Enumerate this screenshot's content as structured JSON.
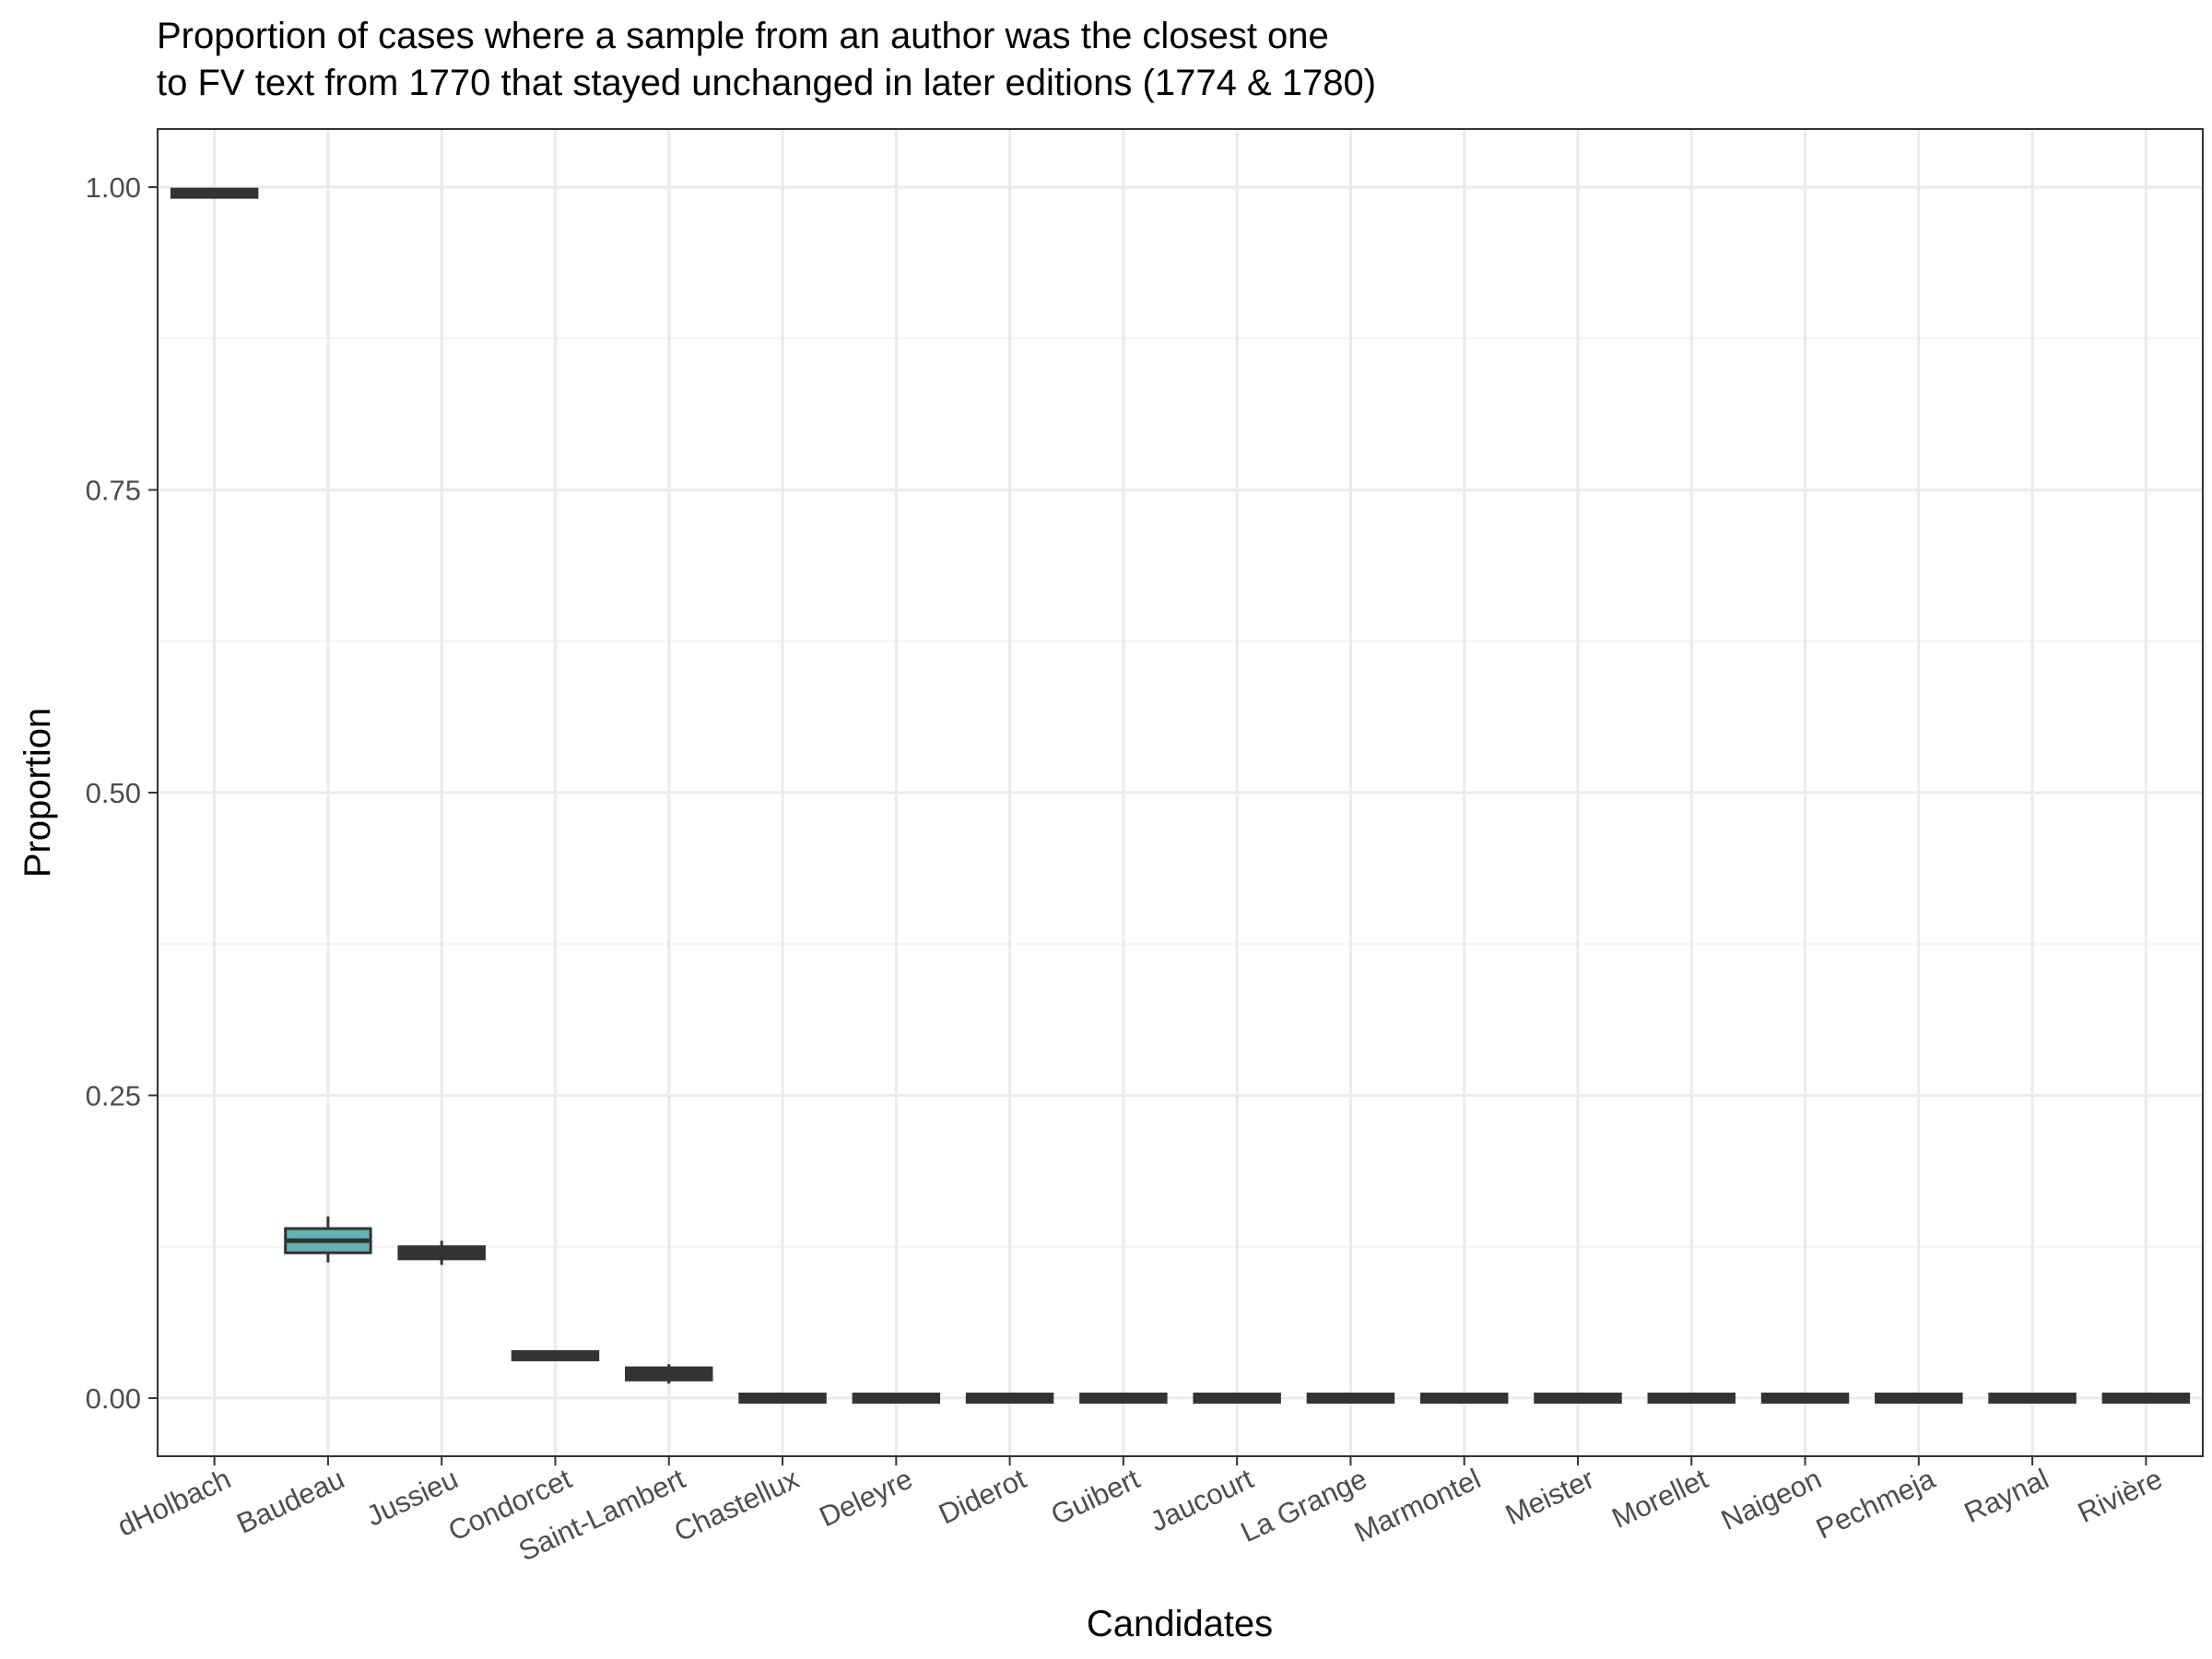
{
  "chart_data": {
    "type": "boxplot",
    "title": [
      "Proportion of cases where a sample from an author was the closest one",
      "to FV text from 1770 that stayed unchanged in later editions (1774 & 1780)"
    ],
    "xlabel": "Candidates",
    "ylabel": "Proportion",
    "ylim": [
      -0.048,
      1.048
    ],
    "yticks": [
      0,
      0.25,
      0.5,
      0.75,
      1
    ],
    "ytick_labels": [
      "0.00",
      "0.25",
      "0.50",
      "0.75",
      "1.00"
    ],
    "grid": true,
    "theme": "bw",
    "categories": [
      "dHolbach",
      "Baudeau",
      "Jussieu",
      "Condorcet",
      "Saint-Lambert",
      "Chastellux",
      "Deleyre",
      "Diderot",
      "Guibert",
      "Jaucourt",
      "La Grange",
      "Marmontel",
      "Meister",
      "Morellet",
      "Naigeon",
      "Pechmeja",
      "Raynal",
      "Rivière"
    ],
    "boxes": [
      {
        "min": 0.992,
        "q1": 0.993,
        "median": 0.995,
        "q3": 0.997,
        "max": 0.998,
        "fill": "#333333"
      },
      {
        "min": 0.112,
        "q1": 0.12,
        "median": 0.13,
        "q3": 0.14,
        "max": 0.15,
        "fill": "#66b2b2"
      },
      {
        "min": 0.11,
        "q1": 0.115,
        "median": 0.12,
        "q3": 0.125,
        "max": 0.13,
        "fill": "#333333"
      },
      {
        "min": 0.032,
        "q1": 0.033,
        "median": 0.035,
        "q3": 0.037,
        "max": 0.039,
        "fill": "#333333"
      },
      {
        "min": 0.012,
        "q1": 0.015,
        "median": 0.02,
        "q3": 0.025,
        "max": 0.028,
        "fill": "#333333"
      },
      {
        "min": 0,
        "q1": 0,
        "median": 0,
        "q3": 0,
        "max": 0,
        "fill": "#333333"
      },
      {
        "min": 0,
        "q1": 0,
        "median": 0,
        "q3": 0,
        "max": 0,
        "fill": "#333333"
      },
      {
        "min": 0,
        "q1": 0,
        "median": 0,
        "q3": 0,
        "max": 0,
        "fill": "#333333"
      },
      {
        "min": 0,
        "q1": 0,
        "median": 0,
        "q3": 0,
        "max": 0,
        "fill": "#333333"
      },
      {
        "min": 0,
        "q1": 0,
        "median": 0,
        "q3": 0,
        "max": 0,
        "fill": "#333333"
      },
      {
        "min": 0,
        "q1": 0,
        "median": 0,
        "q3": 0,
        "max": 0,
        "fill": "#333333"
      },
      {
        "min": 0,
        "q1": 0,
        "median": 0,
        "q3": 0,
        "max": 0,
        "fill": "#333333"
      },
      {
        "min": 0,
        "q1": 0,
        "median": 0,
        "q3": 0,
        "max": 0,
        "fill": "#333333"
      },
      {
        "min": 0,
        "q1": 0,
        "median": 0,
        "q3": 0,
        "max": 0,
        "fill": "#333333"
      },
      {
        "min": 0,
        "q1": 0,
        "median": 0,
        "q3": 0,
        "max": 0,
        "fill": "#333333"
      },
      {
        "min": 0,
        "q1": 0,
        "median": 0,
        "q3": 0,
        "max": 0,
        "fill": "#333333"
      },
      {
        "min": 0,
        "q1": 0,
        "median": 0,
        "q3": 0,
        "max": 0,
        "fill": "#333333"
      },
      {
        "min": 0,
        "q1": 0,
        "median": 0,
        "q3": 0,
        "max": 0,
        "fill": "#333333"
      }
    ],
    "colors": {
      "box_line": "#333333",
      "median_highlight": "#66b2b2",
      "grid_major": "#ebebeb",
      "grid_minor": "#f3f3f3",
      "panel_border": "#333333",
      "tick_label": "#4d4d4d"
    }
  }
}
